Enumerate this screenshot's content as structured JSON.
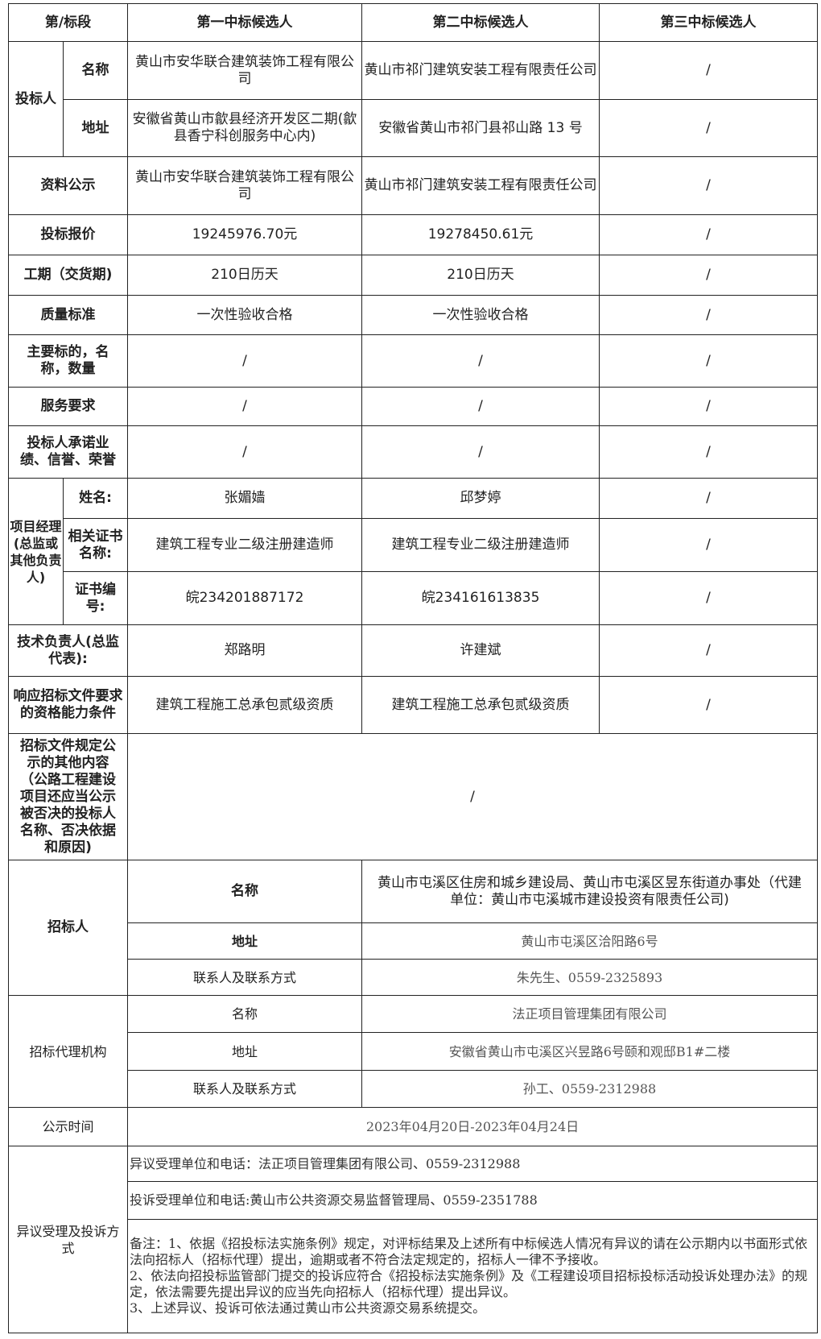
{
  "header": {
    "c0": "第/标段",
    "c1": "第一中标候选人",
    "c2": "第二中标候选人",
    "c3": "第三中标候选人"
  },
  "bidder": {
    "label": "投标人",
    "name_label": "名称",
    "addr_label": "地址",
    "name": [
      "黄山市安华联合建筑装饰工程有限公司",
      "黄山市祁门建筑安装工程有限责任公司",
      "/"
    ],
    "addr": [
      "安徽省黄山市歙县经济开发区二期(歙县香宁科创服务中心内)",
      "安徽省黄山市祁门县祁山路 13 号",
      "/"
    ]
  },
  "rows": [
    {
      "label": "资料公示",
      "v": [
        "黄山市安华联合建筑装饰工程有限公司",
        "黄山市祁门建筑安装工程有限责任公司",
        "/"
      ]
    },
    {
      "label": "投标报价",
      "v": [
        "19245976.70元",
        "19278450.61元",
        "/"
      ]
    },
    {
      "label": "工期（交货期)",
      "v": [
        "210日历天",
        "210日历天",
        "/"
      ]
    },
    {
      "label": "质量标准",
      "v": [
        "一次性验收合格",
        "一次性验收合格",
        "/"
      ]
    },
    {
      "label": "主要标的，名称，数量",
      "v": [
        "/",
        "/",
        "/"
      ]
    },
    {
      "label": "服务要求",
      "v": [
        "/",
        "/",
        "/"
      ]
    },
    {
      "label": "投标人承诺业绩、信誉、荣誉",
      "v": [
        "/",
        "/",
        "/"
      ]
    }
  ],
  "pm": {
    "label": "项目经理(总监或其他负责人)",
    "name_label": "姓名:",
    "name": [
      "张媚嫱",
      "邱梦婷",
      "/"
    ],
    "cert_label": "相关证书名称:",
    "cert": [
      "建筑工程专业二级注册建造师",
      "建筑工程专业二级注册建造师",
      "/"
    ],
    "no_label": "证书编号:",
    "no": [
      "皖234201887172",
      "皖234161613835",
      "/"
    ]
  },
  "tech": {
    "label": "技术负责人(总监代表):",
    "v": [
      "郑路明",
      "许建斌",
      "/"
    ]
  },
  "qual": {
    "label": "响应招标文件要求的资格能力条件",
    "v": [
      "建筑工程施工总承包贰级资质",
      "建筑工程施工总承包贰级资质",
      "/"
    ]
  },
  "other": {
    "label": "招标文件规定公示的其他内容（公路工程建设项目还应当公示被否决的投标人名称、否决依据和原因)",
    "v": "/"
  },
  "tenderer": {
    "label": "招标人",
    "name_label": "名称",
    "name": "黄山市屯溪区住房和城乡建设局、黄山市屯溪区昱东街道办事处（代建单位：黄山市屯溪城市建设投资有限责任公司)",
    "addr_label": "地址",
    "addr": "黄山市屯溪区洽阳路6号",
    "contact_label": "联系人及联系方式",
    "contact": "朱先生、0559-2325893"
  },
  "agency": {
    "label": "招标代理机构",
    "name_label": "名称",
    "name": "法正项目管理集团有限公司",
    "addr_label": "地址",
    "addr": "安徽省黄山市屯溪区兴昱路6号颐和观邸B1#二楼",
    "contact_label": "联系人及联系方式",
    "contact": "孙工、0559-2312988"
  },
  "period": {
    "label": "公示时间",
    "v": "2023年04月20日-2023年04月24日"
  },
  "complaint": {
    "label": "异议受理及投诉方式",
    "objection": "异议受理单位和电话：法正项目管理集团有限公司、0559-2312988",
    "complain": "投诉受理单位和电话:黄山市公共资源交易监督管理局、0559-2351788",
    "notes": [
      "备注：1、依据《招投标法实施条例》规定，对评标结果及上述所有中标候选人情况有异议的请在公示期内以书面形式依法向招标人（招标代理）提出，逾期或者不符合法定规定的，招标人一律不予接收。",
      "2、依法向招投标监管部门提交的投诉应符合《招投标法实施条例》及《工程建设项目招标投标活动投诉处理办法》的规定，依法需要先提出异议的应当先向招标人（招标代理）提出异议。",
      "3、上述异议、投诉可依法通过黄山市公共资源交易系统提交。"
    ]
  }
}
